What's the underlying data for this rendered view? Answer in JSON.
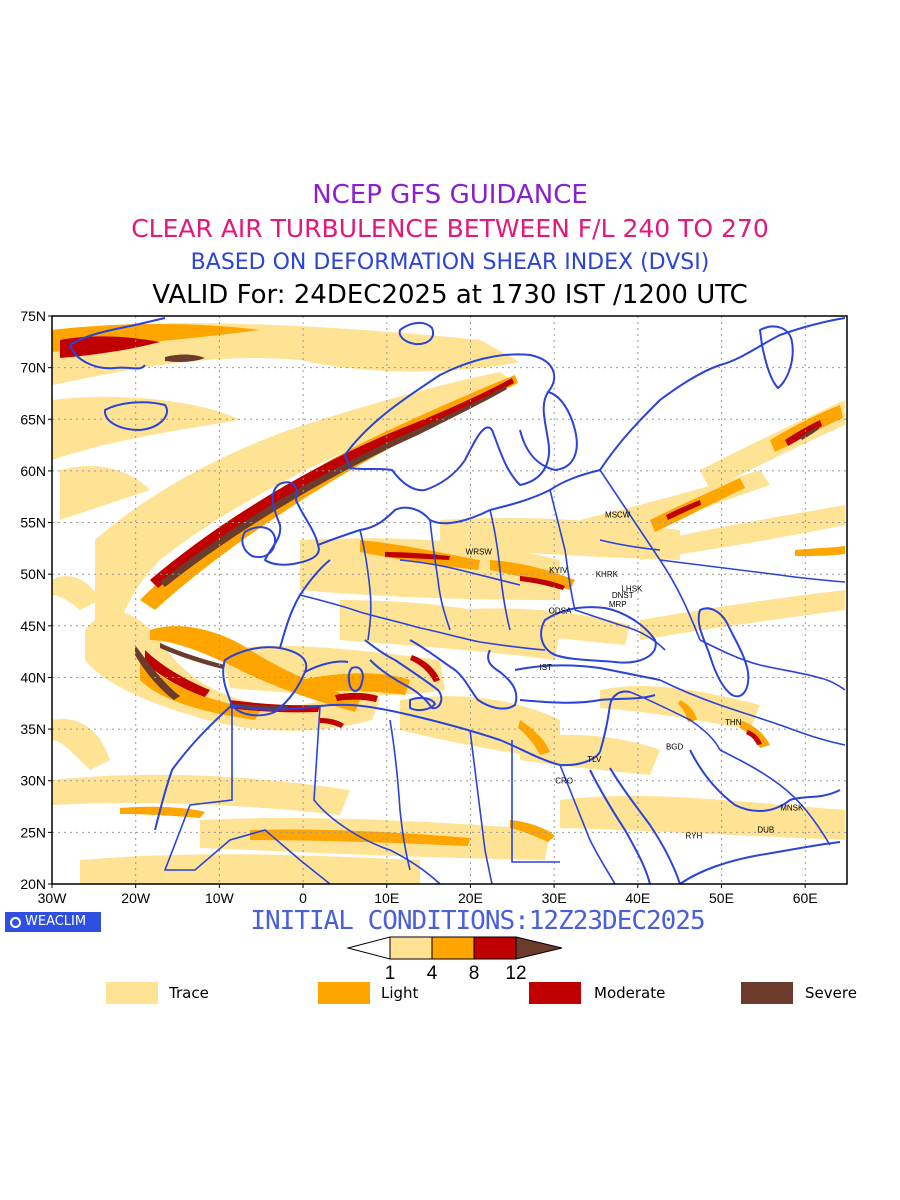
{
  "header": {
    "line1": "NCEP GFS GUIDANCE",
    "line2": "CLEAR AIR TURBULENCE BETWEEN F/L 240 TO 270",
    "line3": "BASED ON DEFORMATION SHEAR INDEX (DVSI)",
    "line4": "VALID For: 24DEC2025 at 1730 IST /1200 UTC"
  },
  "map": {
    "lat_labels": [
      "75N",
      "70N",
      "65N",
      "60N",
      "55N",
      "50N",
      "45N",
      "40N",
      "35N",
      "30N",
      "25N",
      "20N"
    ],
    "lon_labels": [
      "30W",
      "20W",
      "10W",
      "0",
      "10E",
      "20E",
      "30E",
      "40E",
      "50E",
      "60E"
    ],
    "stations": [
      {
        "name": "MSCW",
        "lon": 37.6,
        "lat": 55.8
      },
      {
        "name": "WRSW",
        "lon": 21.0,
        "lat": 52.2
      },
      {
        "name": "KYIV",
        "lon": 30.5,
        "lat": 50.4
      },
      {
        "name": "KHRK",
        "lon": 36.3,
        "lat": 50.0
      },
      {
        "name": "LHSK",
        "lon": 39.3,
        "lat": 48.6
      },
      {
        "name": "DNST",
        "lon": 38.2,
        "lat": 48.0
      },
      {
        "name": "MRP",
        "lon": 37.6,
        "lat": 47.1
      },
      {
        "name": "ODSA",
        "lon": 30.7,
        "lat": 46.5
      },
      {
        "name": "IST",
        "lon": 29.0,
        "lat": 41.0
      },
      {
        "name": "THN",
        "lon": 51.4,
        "lat": 35.7
      },
      {
        "name": "BGD",
        "lon": 44.4,
        "lat": 33.3
      },
      {
        "name": "TLV",
        "lon": 34.8,
        "lat": 32.1
      },
      {
        "name": "CRO",
        "lon": 31.2,
        "lat": 30.0
      },
      {
        "name": "MNSK",
        "lon": 58.4,
        "lat": 27.4
      },
      {
        "name": "DUB",
        "lon": 55.3,
        "lat": 25.3
      },
      {
        "name": "RYH",
        "lon": 46.7,
        "lat": 24.7
      }
    ],
    "colors": {
      "coast": "#2a43d8",
      "trace": "#ffe394",
      "light": "#ffa500",
      "moderate": "#c00000",
      "severe": "#6b3b2b"
    }
  },
  "footer": {
    "initial_conditions": "INITIAL CONDITIONS:12Z23DEC2025",
    "logo_text": "WEACLIM",
    "logo_icon": "weaclim-logo-icon"
  },
  "colorbar": {
    "ticks": [
      "1",
      "4",
      "8",
      "12"
    ]
  },
  "legend": [
    {
      "label": "Trace",
      "color": "#ffe394"
    },
    {
      "label": "Light",
      "color": "#ffa500"
    },
    {
      "label": "Moderate",
      "color": "#c00000"
    },
    {
      "label": "Severe",
      "color": "#6b3b2b"
    }
  ]
}
